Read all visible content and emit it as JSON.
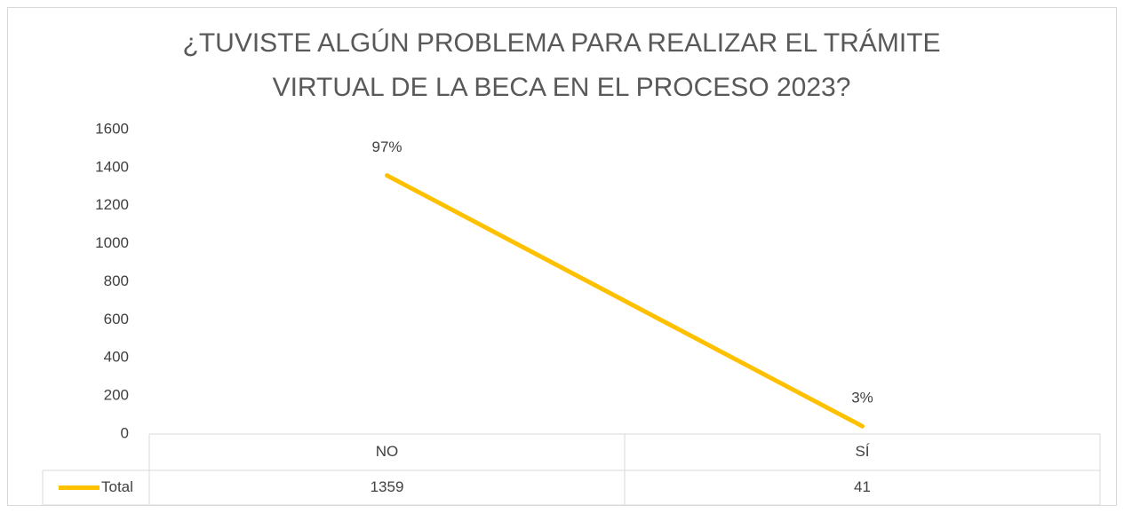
{
  "chart_data": {
    "type": "line",
    "title": "¿TUVISTE ALGÚN PROBLEMA PARA REALIZAR EL TRÁMITE VIRTUAL DE LA BECA EN EL PROCESO 2023?",
    "categories": [
      "NO",
      "SÍ"
    ],
    "series": [
      {
        "name": "Total",
        "color": "#ffc000",
        "values": [
          1359,
          41
        ]
      }
    ],
    "annotations": [
      "97%",
      "3%"
    ],
    "ylim": [
      0,
      1600
    ],
    "yticks": [
      0,
      200,
      400,
      600,
      800,
      1000,
      1200,
      1400,
      1600
    ],
    "grid": false,
    "legend": "data-table"
  }
}
